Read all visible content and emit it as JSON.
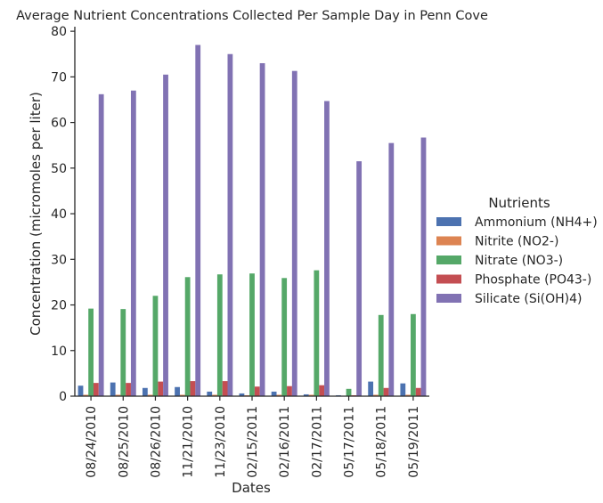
{
  "chart_data": {
    "type": "bar",
    "title": "Average Nutrient Concentrations Collected Per Sample Day in Penn Cove",
    "xlabel": "Dates",
    "ylabel": "Concentration (micromoles per liter)",
    "ylim": [
      0,
      81
    ],
    "yticks": [
      0,
      10,
      20,
      30,
      40,
      50,
      60,
      70,
      80
    ],
    "categories": [
      "08/24/2010",
      "08/25/2010",
      "08/26/2010",
      "11/21/2010",
      "11/23/2010",
      "02/15/2011",
      "02/16/2011",
      "02/17/2011",
      "05/17/2011",
      "05/18/2011",
      "05/19/2011"
    ],
    "series": [
      {
        "name": "Ammonium (NH4+)",
        "color": "#4c72b0",
        "values": [
          2.3,
          3.0,
          1.8,
          2.0,
          1.0,
          0.6,
          1.0,
          0.4,
          0.2,
          3.2,
          2.8
        ]
      },
      {
        "name": "Nitrite (NO2-)",
        "color": "#dd8452",
        "values": [
          0.3,
          0.3,
          0.3,
          0.3,
          0.3,
          0.2,
          0.3,
          0.3,
          0.1,
          0.3,
          0.3
        ]
      },
      {
        "name": "Nitrate (NO3-)",
        "color": "#55a868",
        "values": [
          19.2,
          19.1,
          22.0,
          26.1,
          26.7,
          26.9,
          25.9,
          27.6,
          1.6,
          17.8,
          18.0
        ]
      },
      {
        "name": "Phosphate (PO43-)",
        "color": "#c44e52",
        "values": [
          2.9,
          2.9,
          3.2,
          3.3,
          3.3,
          2.1,
          2.2,
          2.4,
          0.2,
          1.8,
          1.8
        ]
      },
      {
        "name": "Silicate (Si(OH)4)",
        "color": "#8172b3",
        "values": [
          66.2,
          67.0,
          70.5,
          77.0,
          75.0,
          73.0,
          71.3,
          64.7,
          51.5,
          55.5,
          56.7
        ]
      }
    ],
    "legend": {
      "title": "Nutrients",
      "position": "right"
    },
    "grid": false
  }
}
